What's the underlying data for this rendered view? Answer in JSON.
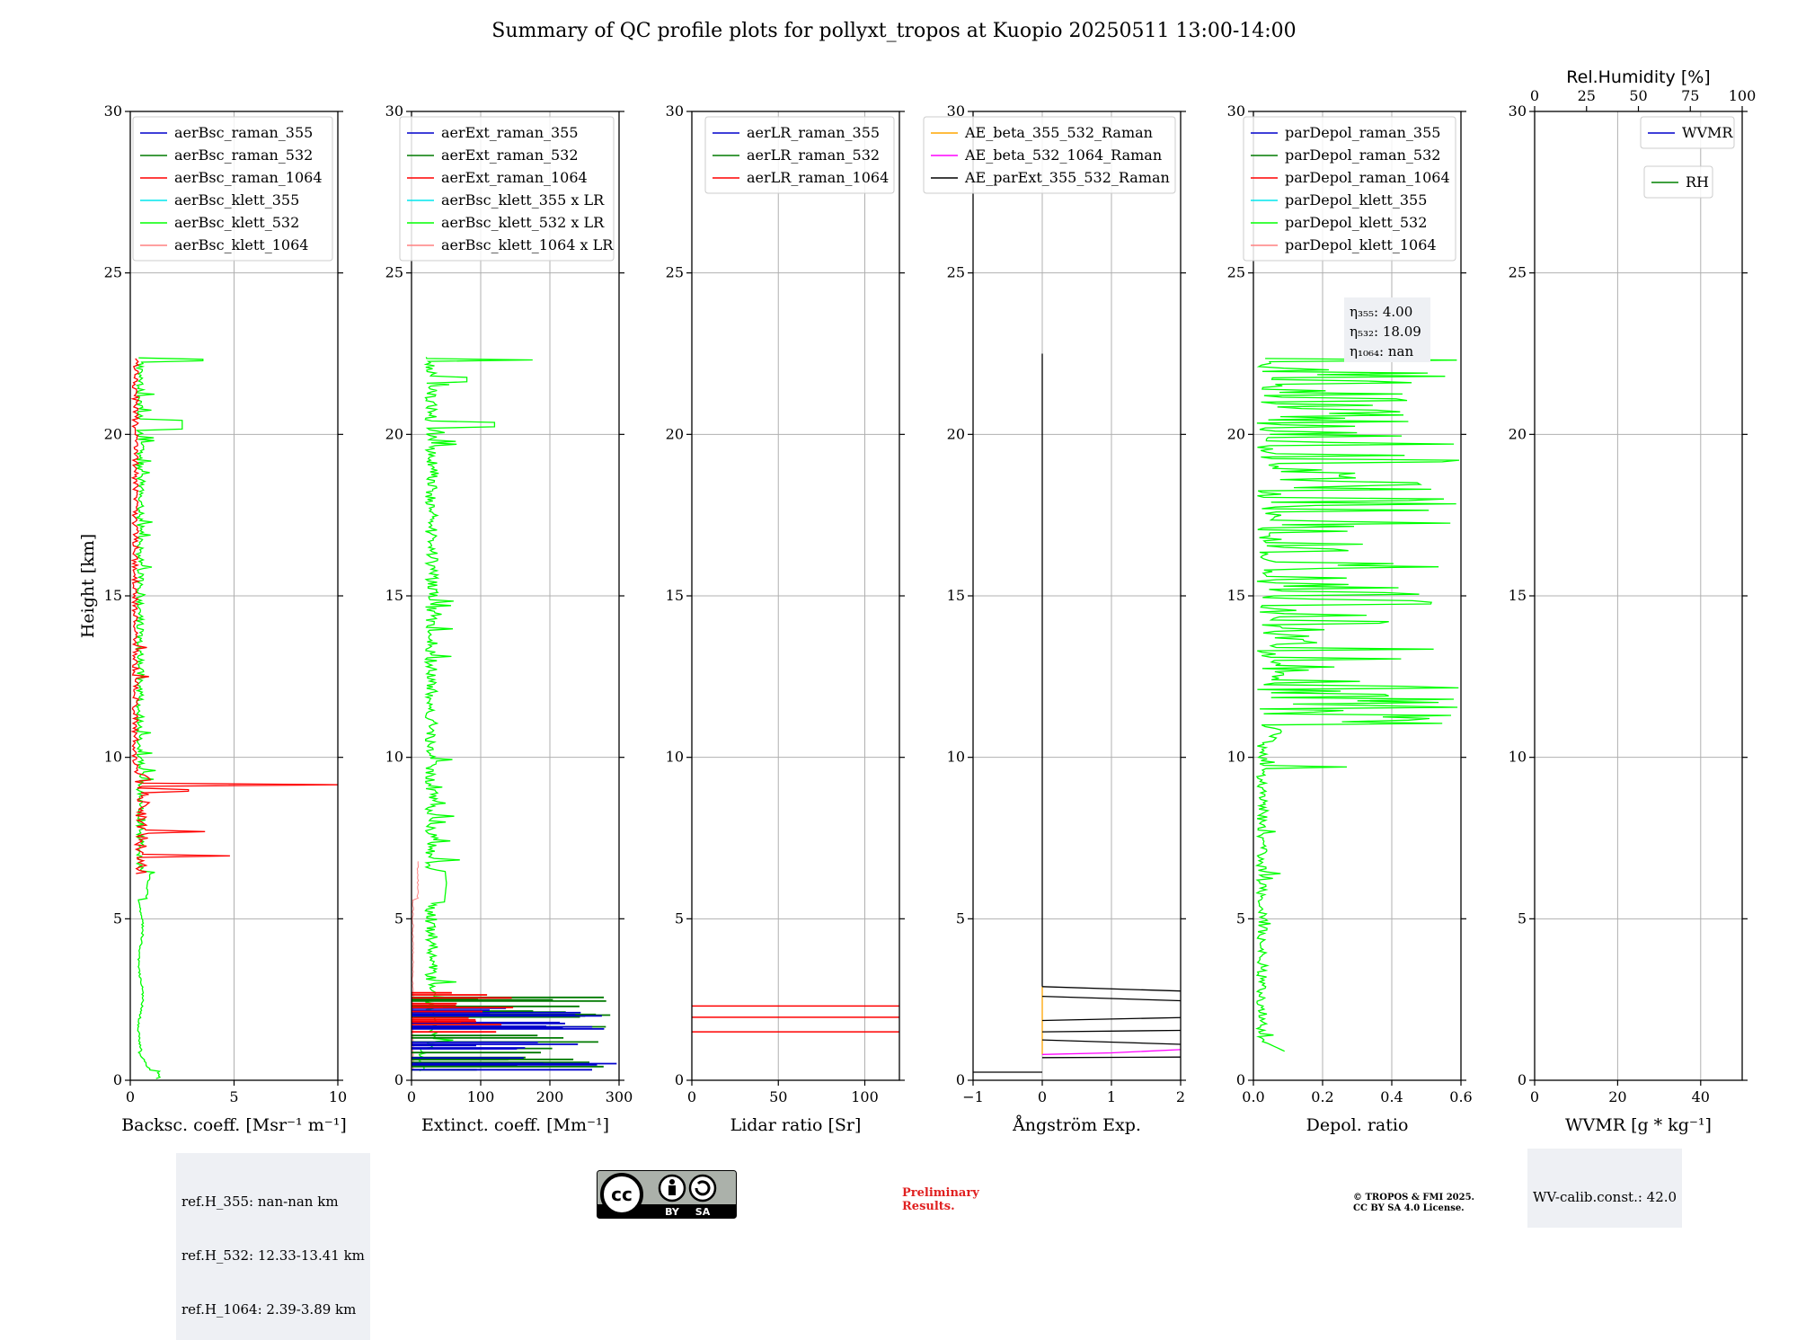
{
  "title": "Summary of QC profile plots for pollyxt_tropos at Kuopio 20250511 13:00-14:00",
  "ylabel": "Height [km]",
  "colors": {
    "raman_355": "#0000cc",
    "raman_532": "#007a00",
    "raman_1064": "#ff0000",
    "klett_355": "#00e5ee",
    "klett_532": "#00ff00",
    "klett_1064": "#ff8080",
    "ae_355_532": "#ffa500",
    "ae_532_1064": "#ff00ff",
    "ae_parext": "#000000",
    "wvmr": "#0000cc",
    "rh": "#008000",
    "grid": "#b0b0b0"
  },
  "chart_data": [
    {
      "id": "bsc",
      "type": "line",
      "xlabel": "Backsc. coeff. [Msr⁻¹ m⁻¹]",
      "xlim": [
        0,
        10
      ],
      "xticks": [
        0,
        5,
        10
      ],
      "ylim": [
        0,
        30
      ],
      "yticks": [
        0,
        5,
        10,
        15,
        20,
        25,
        30
      ],
      "legend": [
        "aerBsc_raman_355",
        "aerBsc_raman_532",
        "aerBsc_raman_1064",
        "aerBsc_klett_355",
        "aerBsc_klett_532",
        "aerBsc_klett_1064"
      ],
      "legend_placement": "top-right",
      "grid": true
    },
    {
      "id": "ext",
      "type": "line",
      "xlabel": "Extinct. coeff. [Mm⁻¹]",
      "xlim": [
        0,
        300
      ],
      "xticks": [
        0,
        100,
        200,
        300
      ],
      "ylim": [
        0,
        30
      ],
      "yticks": [
        0,
        5,
        10,
        15,
        20,
        25,
        30
      ],
      "legend": [
        "aerExt_raman_355",
        "aerExt_raman_532",
        "aerExt_raman_1064",
        "aerBsc_klett_355 x LR",
        "aerBsc_klett_532 x LR",
        "aerBsc_klett_1064 x LR"
      ],
      "legend_placement": "top-right",
      "grid": true
    },
    {
      "id": "lr",
      "type": "line",
      "xlabel": "Lidar ratio [Sr]",
      "xlim": [
        0,
        120
      ],
      "xticks": [
        0,
        50,
        100
      ],
      "ylim": [
        0,
        30
      ],
      "yticks": [
        0,
        5,
        10,
        15,
        20,
        25,
        30
      ],
      "legend": [
        "aerLR_raman_355",
        "aerLR_raman_532",
        "aerLR_raman_1064"
      ],
      "legend_placement": "top-right",
      "grid": true
    },
    {
      "id": "ae",
      "type": "line",
      "xlabel": "Ångström Exp.",
      "xlim": [
        -1,
        2
      ],
      "xticks": [
        -1,
        0,
        1,
        2
      ],
      "ylim": [
        0,
        30
      ],
      "yticks": [
        0,
        5,
        10,
        15,
        20,
        25,
        30
      ],
      "legend": [
        "AE_beta_355_532_Raman",
        "AE_beta_532_1064_Raman",
        "AE_parExt_355_532_Raman"
      ],
      "legend_placement": "top-right",
      "grid": true
    },
    {
      "id": "depol",
      "type": "line",
      "xlabel": "Depol. ratio",
      "xlim": [
        0,
        0.6
      ],
      "xticks": [
        0,
        0.2,
        0.4,
        0.6
      ],
      "xticklabels": [
        "0.0",
        "0.2",
        "0.4",
        "0.6"
      ],
      "ylim": [
        0,
        30
      ],
      "yticks": [
        0,
        5,
        10,
        15,
        20,
        25,
        30
      ],
      "legend": [
        "parDepol_raman_355",
        "parDepol_raman_532",
        "parDepol_raman_1064",
        "parDepol_klett_355",
        "parDepol_klett_532",
        "parDepol_klett_1064"
      ],
      "legend_placement": "top-right",
      "grid": true,
      "annotation": [
        "η₃₅₅: 4.00",
        "η₅₃₂: 18.09",
        "η₁₀₆₄: nan"
      ]
    },
    {
      "id": "wv",
      "type": "line",
      "xlabel": "WVMR [g * kg⁻¹]",
      "xlim": [
        0,
        50
      ],
      "xticks": [
        0,
        20,
        40
      ],
      "top_xlabel": "Rel.Humidity [%]",
      "top_xlim": [
        0,
        100
      ],
      "top_xticks": [
        0,
        25,
        50,
        75,
        100
      ],
      "ylim": [
        0,
        30
      ],
      "yticks": [
        0,
        5,
        10,
        15,
        20,
        25,
        30
      ],
      "legend": [
        "WVMR",
        "RH"
      ],
      "legend_placement": "top-right",
      "grid": true,
      "series": []
    }
  ],
  "ref_heights": [
    "ref.H_355: nan-nan km",
    "ref.H_532: 12.33-13.41 km",
    "ref.H_1064: 2.39-3.89 km"
  ],
  "wv_calib": "WV-calib.const.: 42.0",
  "license_badge": {
    "cc": "cc",
    "by": "BY",
    "sa": "SA"
  },
  "preliminary": [
    "Preliminary",
    "Results."
  ],
  "copyright": [
    "© TROPOS & FMI 2025.",
    "CC BY SA 4.0 License."
  ]
}
